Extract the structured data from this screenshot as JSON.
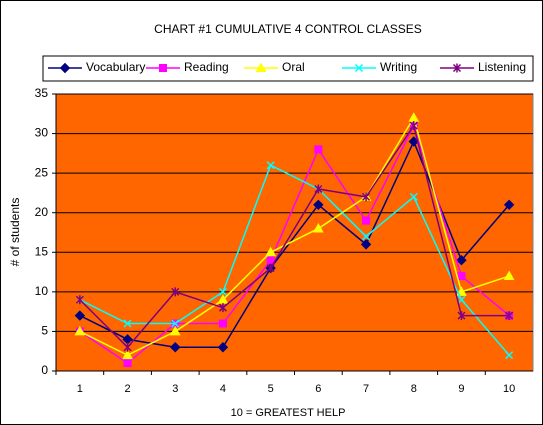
{
  "chart_data": {
    "type": "line",
    "title": "CHART #1 CUMULATIVE 4 CONTROL CLASSES",
    "xlabel": "10 = GREATEST HELP",
    "ylabel": "# of students",
    "categories": [
      1,
      2,
      3,
      4,
      5,
      6,
      7,
      8,
      9,
      10
    ],
    "series": [
      {
        "name": "Vocabulary",
        "color": "#000080",
        "marker": "diamond",
        "values": [
          7,
          4,
          3,
          3,
          13,
          21,
          16,
          29,
          14,
          21
        ]
      },
      {
        "name": "Reading",
        "color": "#FF00FF",
        "marker": "square",
        "values": [
          5,
          1,
          6,
          6,
          14,
          28,
          19,
          31,
          12,
          7
        ]
      },
      {
        "name": "Oral",
        "color": "#FFFF00",
        "marker": "triangle",
        "values": [
          5,
          2,
          5,
          9,
          15,
          18,
          22,
          32,
          10,
          12
        ]
      },
      {
        "name": "Writing",
        "color": "#00FFFF",
        "marker": "x",
        "values": [
          9,
          6,
          6,
          10,
          26,
          23,
          17,
          22,
          9,
          2
        ]
      },
      {
        "name": "Listening",
        "color": "#800080",
        "marker": "star",
        "values": [
          9,
          3,
          10,
          8,
          13,
          23,
          22,
          31,
          7,
          7
        ]
      }
    ],
    "ylim": [
      0,
      35
    ],
    "yticks": [
      0,
      5,
      10,
      15,
      20,
      25,
      30,
      35
    ],
    "grid": true,
    "plot_background": "#FF6600"
  }
}
